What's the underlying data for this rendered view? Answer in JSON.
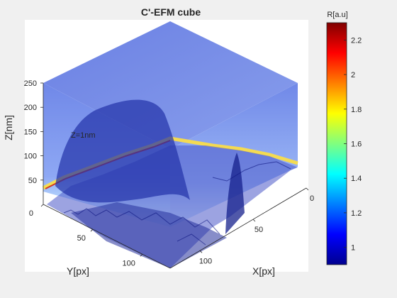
{
  "chart_data": {
    "type": "heatmap",
    "title": "C'-EFM cube",
    "xlabel": "X[px]",
    "ylabel": "Y[px]",
    "zlabel": "Z[nm]",
    "x_ticks": [
      "0",
      "50",
      "100"
    ],
    "y_ticks": [
      "0",
      "50",
      "100"
    ],
    "z_ticks": [
      "50",
      "100",
      "150",
      "200",
      "250"
    ],
    "xlim": [
      0,
      128
    ],
    "ylim": [
      0,
      128
    ],
    "zlim": [
      0,
      250
    ],
    "view": "3d-isometric",
    "annotation": "Z=1nm",
    "colorbar": {
      "label": "R[a.u]",
      "ticks": [
        "1",
        "1.2",
        "1.4",
        "1.6",
        "1.8",
        "2",
        "2.2"
      ],
      "range": [
        0.9,
        2.3
      ],
      "colormap": "jet"
    },
    "colors": {
      "background": "#f0f0f0",
      "surface_fill": "#1a22b0",
      "slice_top": "#6c84e8",
      "slice_hot": "#ffe040"
    }
  }
}
